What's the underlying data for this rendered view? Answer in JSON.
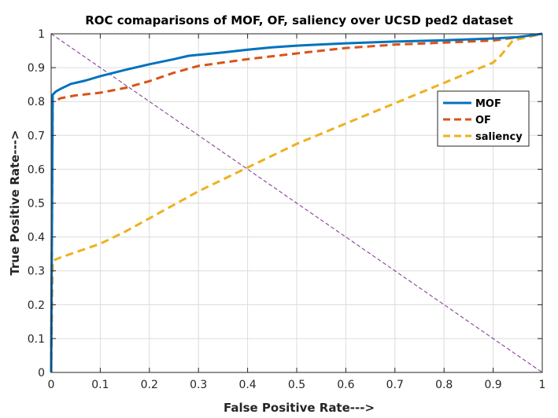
{
  "chart_data": {
    "type": "line",
    "title": "ROC comaparisons of MOF, OF, saliency over UCSD ped2 dataset",
    "xlabel": "False Positive Rate--->",
    "ylabel": "True Positive Rate--->",
    "xlim": [
      0,
      1
    ],
    "ylim": [
      0,
      1
    ],
    "xticks": [
      "0",
      "0.1",
      "0.2",
      "0.3",
      "0.4",
      "0.5",
      "0.6",
      "0.7",
      "0.8",
      "0.9",
      "1"
    ],
    "yticks": [
      "0",
      "0.1",
      "0.2",
      "0.3",
      "0.4",
      "0.5",
      "0.6",
      "0.7",
      "0.8",
      "0.9",
      "1"
    ],
    "grid": true,
    "legend_position": "top-right",
    "series": [
      {
        "name": "MOF",
        "color": "#0072bd",
        "style": "solid",
        "x": [
          0,
          0.003,
          0.01,
          0.02,
          0.04,
          0.07,
          0.1,
          0.15,
          0.2,
          0.25,
          0.28,
          0.35,
          0.4,
          0.45,
          0.5,
          0.6,
          0.7,
          0.8,
          0.9,
          0.95,
          1.0
        ],
        "y": [
          0,
          0.82,
          0.83,
          0.838,
          0.852,
          0.862,
          0.875,
          0.893,
          0.91,
          0.925,
          0.935,
          0.945,
          0.953,
          0.96,
          0.965,
          0.972,
          0.977,
          0.981,
          0.986,
          0.99,
          1.0
        ]
      },
      {
        "name": "OF",
        "color": "#d95319",
        "style": "dashed",
        "x": [
          0,
          0.003,
          0.02,
          0.05,
          0.1,
          0.15,
          0.2,
          0.25,
          0.3,
          0.4,
          0.5,
          0.6,
          0.7,
          0.8,
          0.9,
          0.95,
          1.0
        ],
        "y": [
          0,
          0.8,
          0.81,
          0.818,
          0.826,
          0.84,
          0.86,
          0.885,
          0.905,
          0.925,
          0.942,
          0.958,
          0.968,
          0.974,
          0.98,
          0.99,
          1.0
        ]
      },
      {
        "name": "saliency",
        "color": "#edb120",
        "style": "dashed",
        "x": [
          0,
          0.003,
          0.02,
          0.05,
          0.1,
          0.15,
          0.2,
          0.3,
          0.4,
          0.5,
          0.6,
          0.7,
          0.8,
          0.85,
          0.9,
          0.915,
          0.94,
          0.97,
          1.0
        ],
        "y": [
          0,
          0.33,
          0.34,
          0.355,
          0.38,
          0.415,
          0.455,
          0.535,
          0.605,
          0.675,
          0.735,
          0.795,
          0.855,
          0.885,
          0.915,
          0.935,
          0.98,
          0.99,
          1.0
        ]
      },
      {
        "color": "#7e2f8e",
        "style": "dashed-thin",
        "x": [
          0,
          1
        ],
        "y": [
          1,
          0
        ]
      }
    ]
  }
}
